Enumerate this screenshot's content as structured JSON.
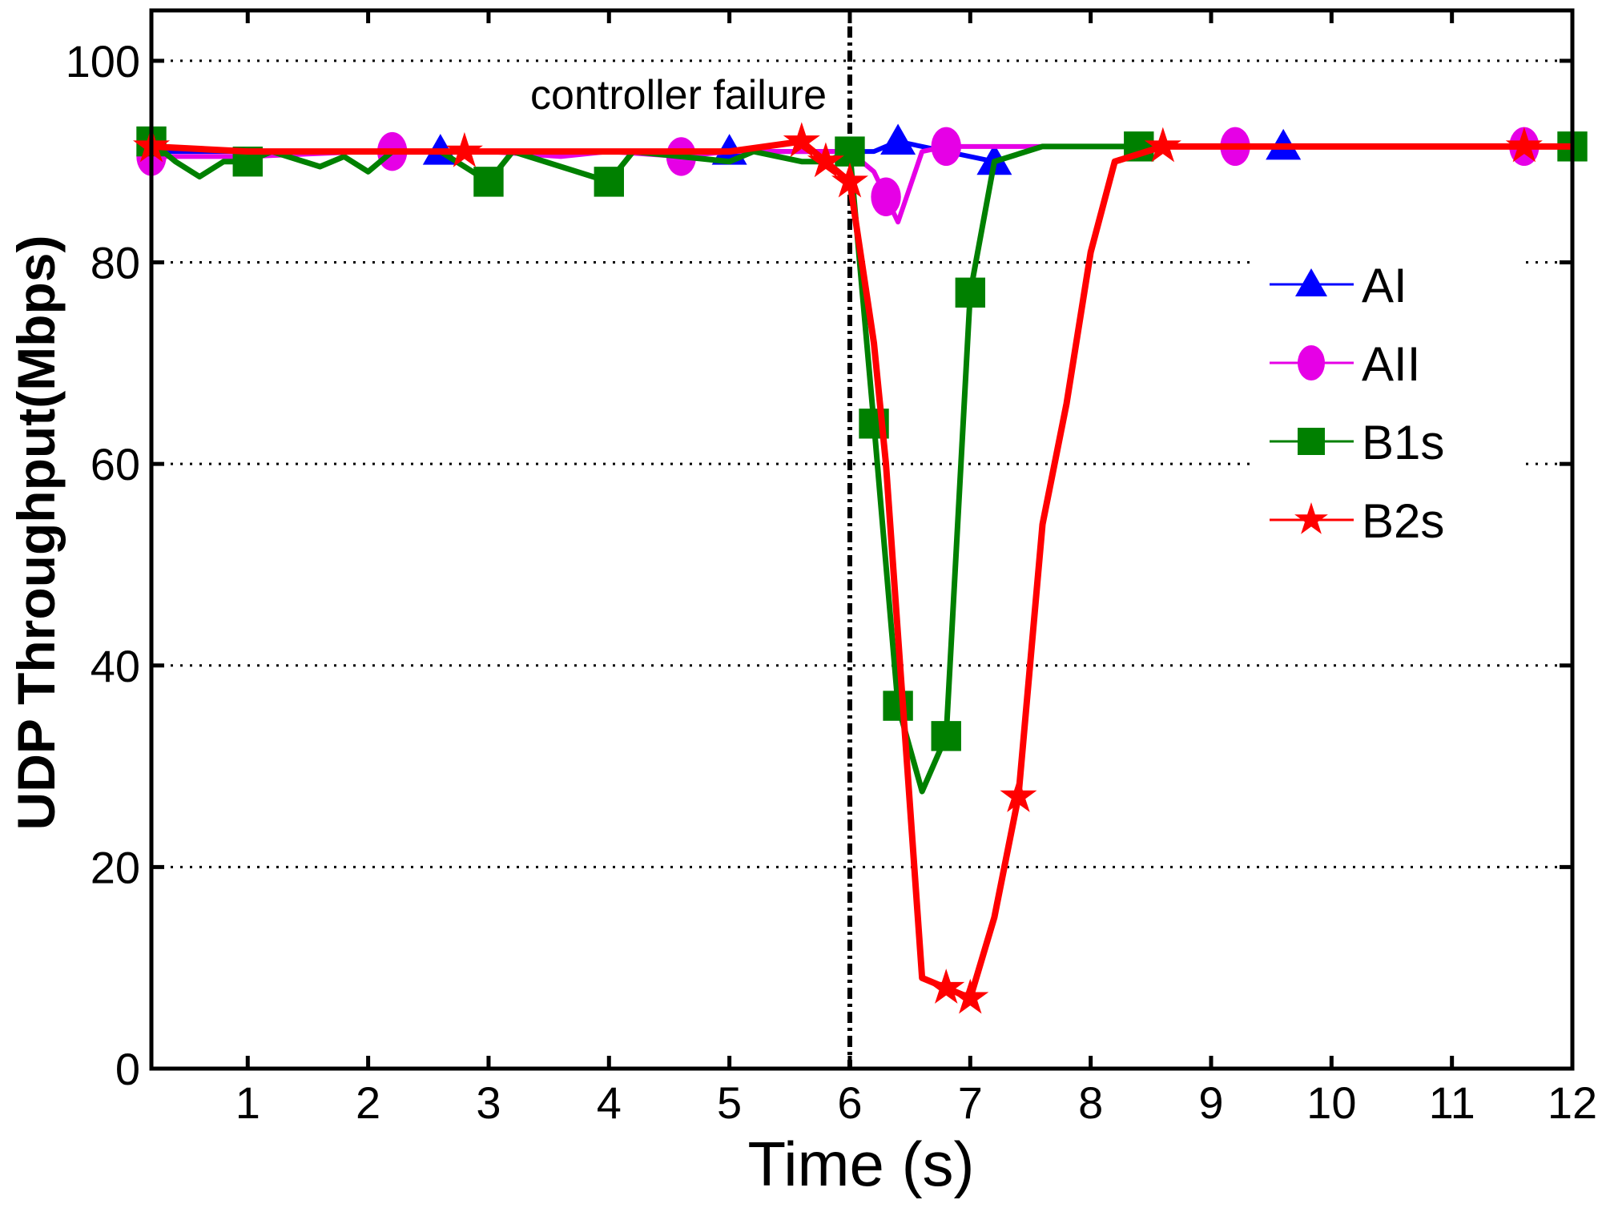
{
  "chart_data": {
    "type": "line",
    "title": "",
    "xlabel": "Time (s)",
    "ylabel": "UDP Throughput(Mbps)",
    "xlim": [
      0.2,
      12
    ],
    "ylim": [
      0,
      105
    ],
    "xticks": [
      1,
      2,
      3,
      4,
      5,
      6,
      7,
      8,
      9,
      10,
      11,
      12
    ],
    "yticks": [
      0,
      20,
      40,
      60,
      80,
      100
    ],
    "grid": "horizontal dotted",
    "legend_position": "right",
    "annotation": {
      "text": "controller failure",
      "x": 6
    },
    "series": [
      {
        "name": "AI",
        "color": "#0000ff",
        "marker": "triangle",
        "x": [
          0.2,
          1,
          2,
          2.6,
          3,
          4,
          5,
          5.6,
          6,
          6.2,
          6.4,
          6.8,
          7.2,
          7.6,
          8,
          9,
          9.6,
          10,
          11,
          12
        ],
        "y": [
          91,
          91,
          91,
          91,
          91,
          91,
          91,
          91,
          91,
          91,
          92,
          91,
          90,
          91.5,
          91.5,
          91.5,
          91.5,
          91.5,
          91.5,
          91.5
        ],
        "markers_at": [
          2.6,
          5,
          6.4,
          7.2,
          9.6
        ]
      },
      {
        "name": "AII",
        "color": "#e600e6",
        "marker": "circle",
        "x": [
          0.2,
          1,
          2,
          2.2,
          3,
          3.6,
          4,
          4.6,
          5,
          5.6,
          6,
          6.2,
          6.3,
          6.4,
          6.6,
          6.8,
          7.5,
          9.2,
          11.6,
          12
        ],
        "y": [
          90.5,
          90.5,
          91,
          91,
          91,
          90.5,
          91,
          90.5,
          91,
          91,
          91,
          89,
          86.5,
          84,
          91,
          91.5,
          91.5,
          91.5,
          91.5,
          91.5
        ],
        "markers_at": [
          0.2,
          2.2,
          4.6,
          6.3,
          6.8,
          9.2,
          11.6
        ]
      },
      {
        "name": "B1s",
        "color": "#008000",
        "marker": "square",
        "x": [
          0.2,
          0.4,
          0.6,
          0.8,
          1,
          1.2,
          1.6,
          1.8,
          2,
          2.2,
          2.6,
          3,
          3.2,
          4,
          4.2,
          5,
          5.2,
          5.6,
          5.8,
          6,
          6.2,
          6.4,
          6.6,
          6.8,
          7,
          7.2,
          7.6,
          8,
          8.4,
          9,
          10,
          11,
          12
        ],
        "y": [
          92,
          90,
          88.5,
          90,
          90,
          91,
          89.5,
          90.5,
          89,
          91,
          91,
          88,
          91,
          88,
          91,
          90,
          91,
          90,
          90,
          91,
          64,
          36,
          27.5,
          33,
          77,
          90,
          91.5,
          91.5,
          91.5,
          91.5,
          91.5,
          91.5,
          91.5
        ],
        "markers_at": [
          0.2,
          1,
          3,
          4,
          6,
          6.2,
          6.4,
          6.8,
          7,
          8.4,
          12
        ]
      },
      {
        "name": "B2s",
        "color": "#ff0000",
        "marker": "star",
        "x": [
          0.2,
          1,
          2,
          2.8,
          3,
          4,
          5,
          5.6,
          5.8,
          6,
          6.2,
          6.3,
          6.6,
          6.8,
          7,
          7.2,
          7.4,
          7.6,
          7.8,
          8,
          8.2,
          8.6,
          9,
          10,
          11,
          11.6,
          12
        ],
        "y": [
          91.5,
          91,
          91,
          91,
          91,
          91,
          91,
          92,
          90,
          88,
          72,
          60,
          9,
          8,
          7,
          15,
          27,
          54,
          66,
          81,
          90,
          91.5,
          91.5,
          91.5,
          91.5,
          91.5,
          91.5
        ],
        "markers_at": [
          0.2,
          2.8,
          5.6,
          5.8,
          6,
          6.8,
          7,
          7.4,
          8.6,
          11.6
        ]
      }
    ]
  }
}
